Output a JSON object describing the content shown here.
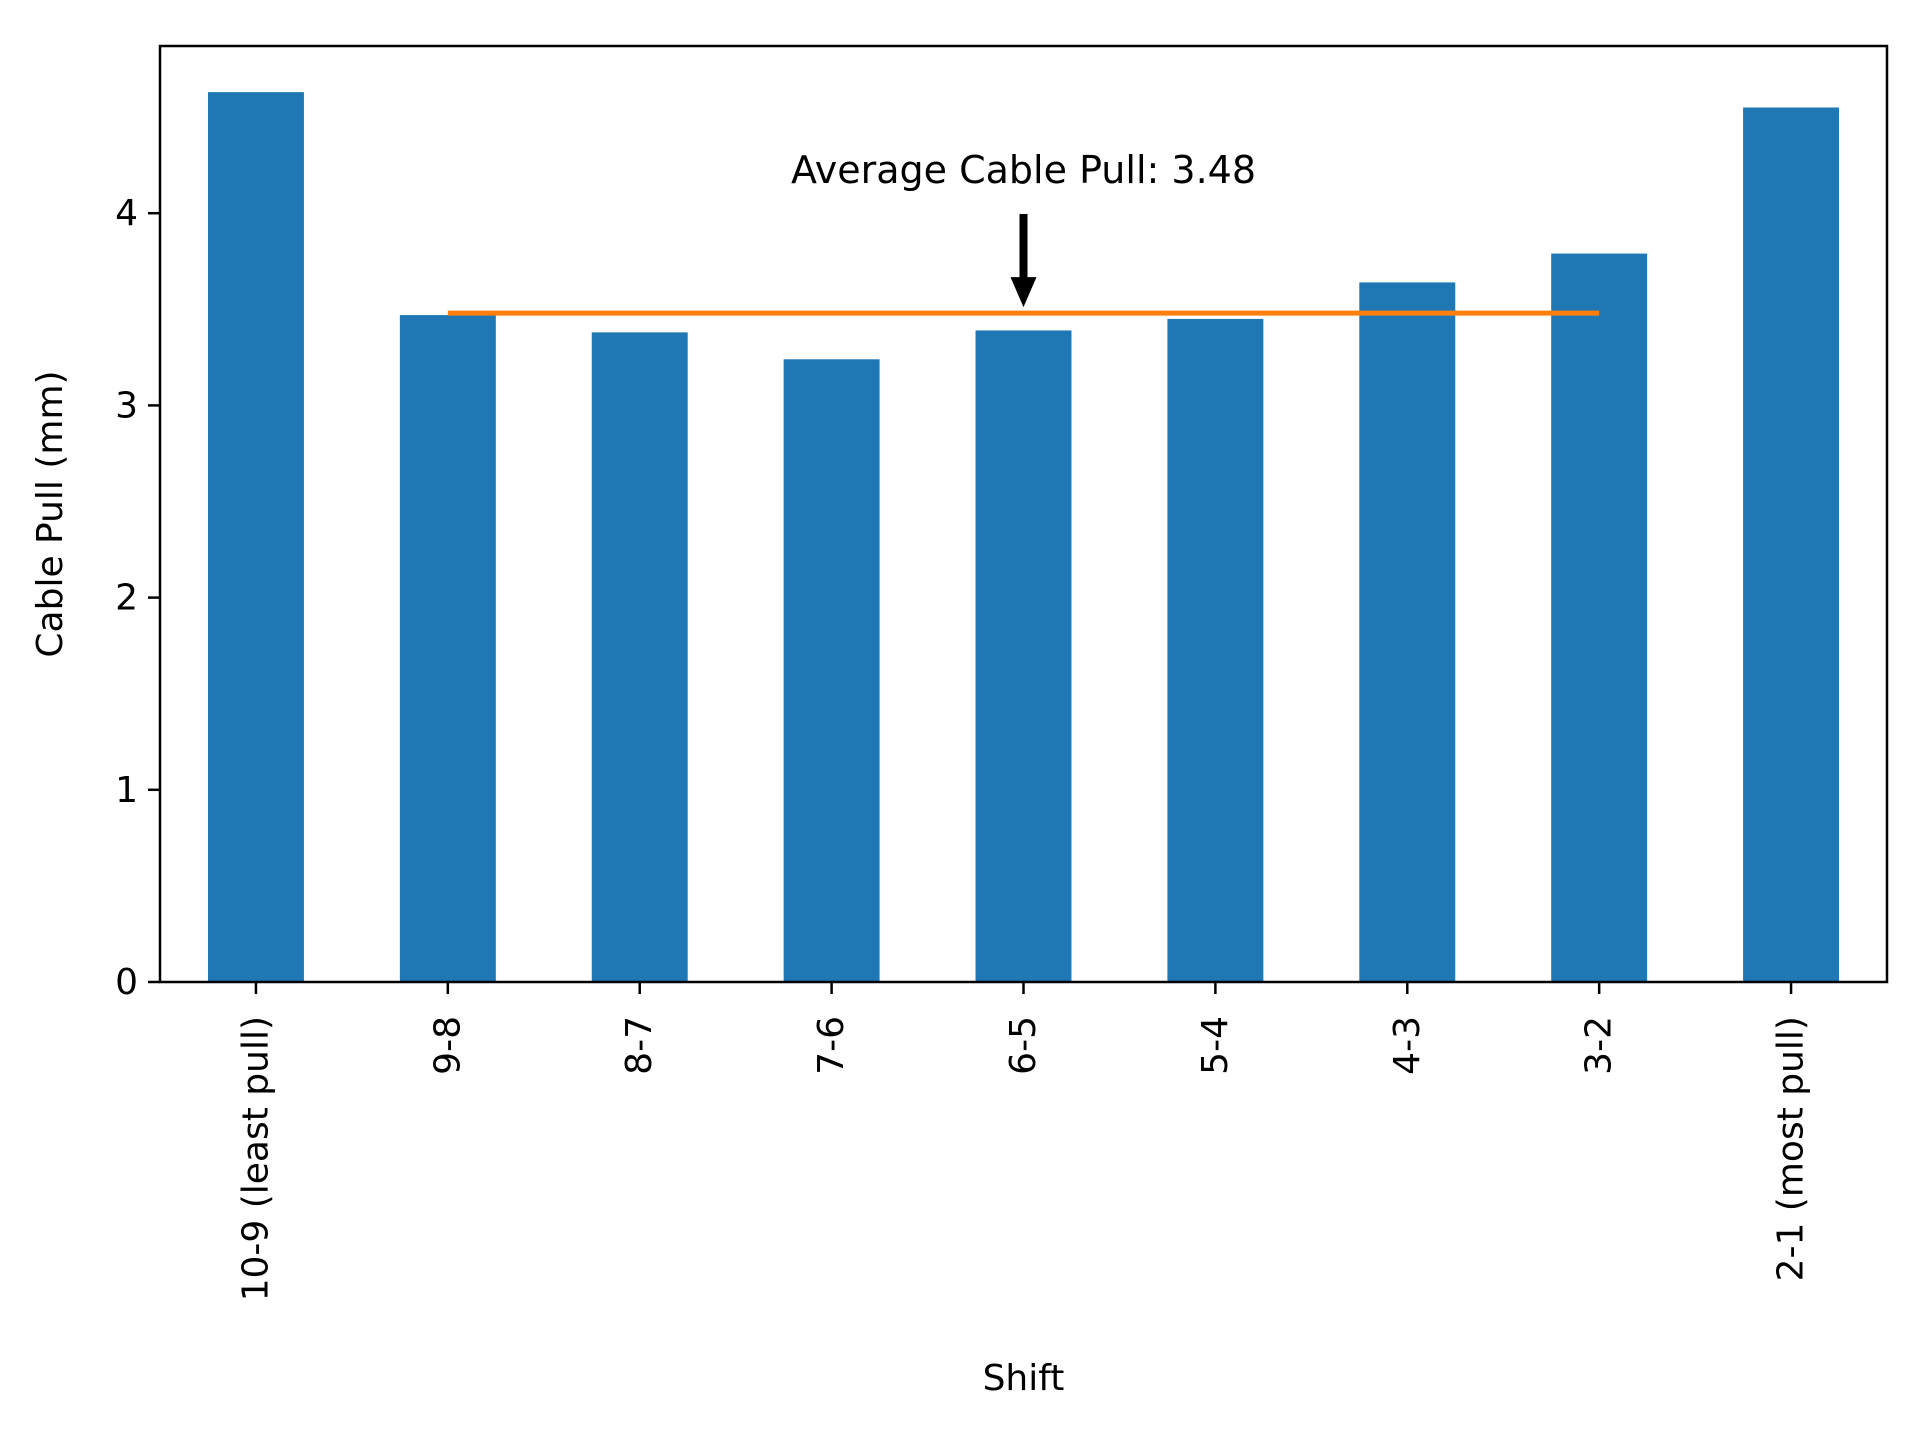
{
  "chart_data": {
    "type": "bar",
    "categories": [
      "10-9 (least pull)",
      "9-8",
      "8-7",
      "7-6",
      "6-5",
      "5-4",
      "4-3",
      "3-2",
      "2-1 (most pull)"
    ],
    "values": [
      4.63,
      3.47,
      3.38,
      3.24,
      3.39,
      3.45,
      3.64,
      3.79,
      4.55
    ],
    "xlabel": "Shift",
    "ylabel": "Cable Pull (mm)",
    "ylim": [
      0,
      4.87
    ],
    "yticks": [
      0,
      1,
      2,
      3,
      4
    ],
    "ytick_labels": [
      "0",
      "1",
      "2",
      "3",
      "4"
    ],
    "grid": false,
    "average": {
      "value": 3.48,
      "from_category": "9-8",
      "to_category": "3-2"
    },
    "annotation": {
      "text": "Average Cable Pull: 3.48",
      "arrow_target_category": "6-5",
      "arrow_target_value": 3.48
    },
    "colors": {
      "bar": "#1f77b4",
      "average_line": "#ff7f0e",
      "arrow": "#000000"
    }
  }
}
